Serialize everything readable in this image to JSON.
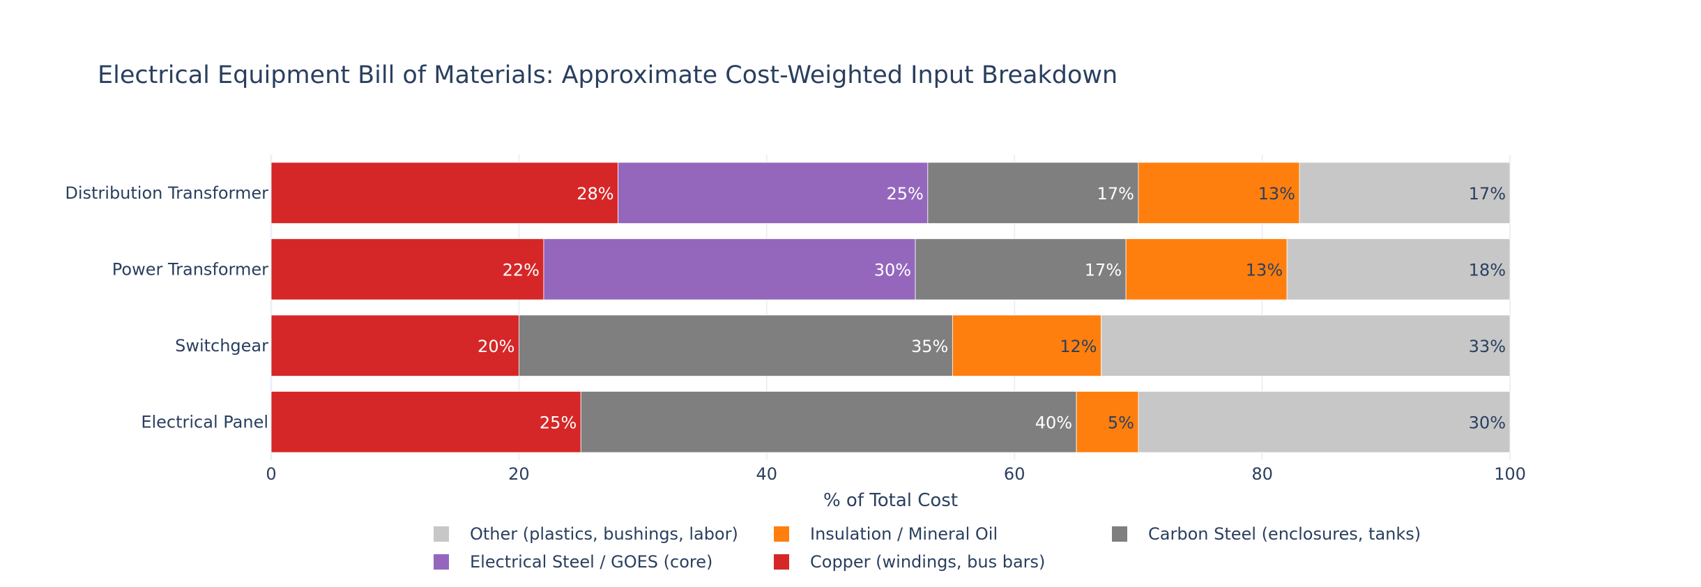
{
  "chart_data": {
    "type": "bar",
    "orientation": "horizontal",
    "stacked": true,
    "title": "Electrical Equipment Bill of Materials: Approximate Cost-Weighted Input Breakdown",
    "xlabel": "% of Total Cost",
    "ylabel": "",
    "xlim": [
      0,
      100
    ],
    "xticks": [
      0,
      20,
      40,
      60,
      80,
      100
    ],
    "grid": true,
    "legend_position": "bottom",
    "categories": [
      "Electrical Panel",
      "Switchgear",
      "Power Transformer",
      "Distribution Transformer"
    ],
    "series": [
      {
        "name": "Copper (windings, bus bars)",
        "color": "#d62728",
        "text_color": "#ffffff",
        "values": [
          25,
          20,
          22,
          28
        ]
      },
      {
        "name": "Electrical Steel / GOES (core)",
        "color": "#9467bd",
        "text_color": "#ffffff",
        "values": [
          0,
          0,
          30,
          25
        ]
      },
      {
        "name": "Carbon Steel (enclosures, tanks)",
        "color": "#7f7f7f",
        "text_color": "#ffffff",
        "values": [
          40,
          35,
          17,
          17
        ]
      },
      {
        "name": "Insulation / Mineral Oil",
        "color": "#ff7f0e",
        "text_color": "#2a3f5f",
        "values": [
          5,
          12,
          13,
          13
        ]
      },
      {
        "name": "Other (plastics, bushings, labor)",
        "color": "#c7c7c7",
        "text_color": "#2a3f5f",
        "values": [
          30,
          33,
          18,
          17
        ]
      }
    ],
    "legend_order": [
      4,
      3,
      2,
      1,
      0
    ]
  }
}
